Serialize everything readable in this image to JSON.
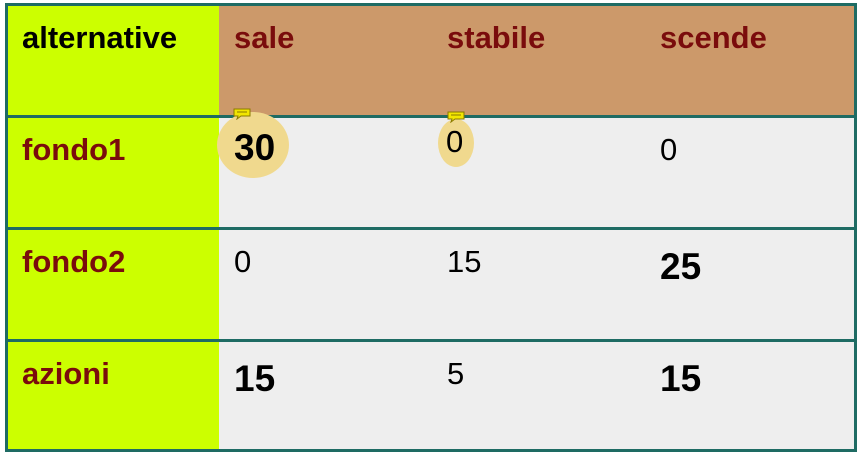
{
  "table": {
    "header": {
      "label": "alternative",
      "cols": [
        "sale",
        "stabile",
        "scende"
      ]
    },
    "rows": [
      {
        "label": "fondo1",
        "values": [
          "30",
          "0",
          "0"
        ],
        "bold": [
          true,
          false,
          false
        ]
      },
      {
        "label": "fondo2",
        "values": [
          "0",
          "15",
          "25"
        ],
        "bold": [
          false,
          false,
          true
        ]
      },
      {
        "label": "azioni",
        "values": [
          "15",
          "5",
          "15"
        ],
        "bold": [
          true,
          false,
          true
        ]
      }
    ]
  },
  "colors": {
    "border": "#1e6b63",
    "label_bg": "#ccff00",
    "header_bg": "#cc996a",
    "body_bg": "#eeeeee",
    "label_text": "#7a0c0c",
    "highlight": "#f0d98e"
  },
  "icons": [
    "comment-note-icon",
    "comment-note-icon"
  ]
}
